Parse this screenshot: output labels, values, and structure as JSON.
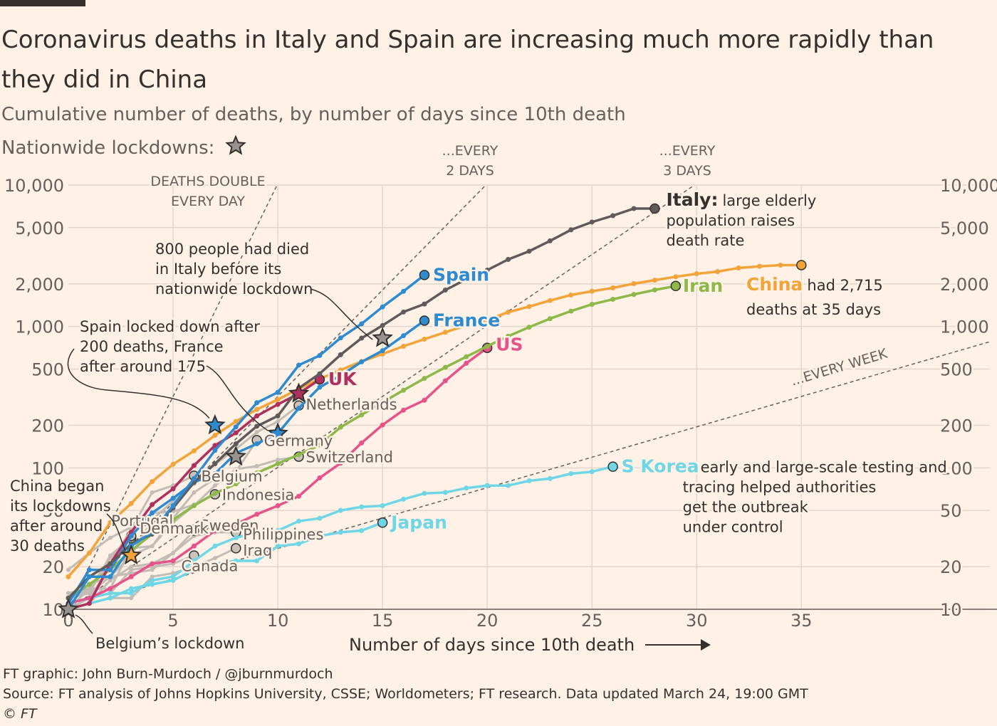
{
  "header": {
    "title": "Coronavirus deaths in Italy and Spain are increasing much more rapidly than they did in China",
    "subtitle": "Cumulative number of deaths, by number of days since 10th death",
    "lockdown_label": "Nationwide lockdowns:"
  },
  "footer": {
    "credit": "FT graphic: John Burn-Murdoch / @jburnmurdoch",
    "source": "Source: FT analysis of Johns Hopkins University, CSSE; Worldometers; FT research. Data updated March 24, 19:00 GMT",
    "copyright": "© FT"
  },
  "chart_data": {
    "type": "line",
    "xlabel": "Number of days since 10th death",
    "ylabel": "",
    "xlim": [
      0,
      44
    ],
    "ylim": [
      10,
      10000
    ],
    "yscale": "log",
    "x_ticks": [
      0,
      5,
      10,
      15,
      20,
      25,
      30,
      35
    ],
    "y_ticks": [
      10,
      20,
      50,
      100,
      200,
      500,
      1000,
      2000,
      5000,
      10000
    ],
    "y_tick_labels": [
      "10",
      "20",
      "50",
      "100",
      "200",
      "500",
      "1,000",
      "2,000",
      "5,000",
      "10,000"
    ],
    "grid": true,
    "colors": {
      "background": "#fff1e5",
      "grid": "#e0d6cc",
      "axis": "#66605c",
      "spain": "#2e8bd0",
      "italy": "#5e5b5a",
      "china": "#f2a33a",
      "iran": "#8db84a",
      "france": "#2e8bd0",
      "us": "#e6538a",
      "uk": "#b0305d",
      "skorea": "#6fd6e6",
      "japan": "#6fd6e6",
      "others": "#c2bcb5",
      "star": "#999390"
    },
    "guides": [
      {
        "label_lines": [
          "DEATHS DOUBLE",
          "EVERY DAY"
        ],
        "doubling_days": 1
      },
      {
        "label_lines": [
          "...EVERY",
          "2 DAYS"
        ],
        "doubling_days": 2
      },
      {
        "label_lines": [
          "...EVERY",
          "3 DAYS"
        ],
        "doubling_days": 3
      },
      {
        "label_lines": [
          "...EVERY WEEK"
        ],
        "doubling_days": 7
      }
    ],
    "series": [
      {
        "name": "Spain",
        "color_key": "spain",
        "x": [
          0,
          1,
          2,
          3,
          4,
          5,
          6,
          7,
          8,
          9,
          10,
          11,
          12,
          13,
          14,
          15,
          16,
          17
        ],
        "y": [
          10,
          17,
          17,
          28,
          35,
          54,
          84,
          133,
          195,
          289,
          342,
          533,
          623,
          830,
          1043,
          1375,
          1772,
          2311
        ]
      },
      {
        "name": "Italy",
        "color_key": "italy",
        "x": [
          0,
          1,
          2,
          3,
          4,
          5,
          6,
          7,
          8,
          9,
          10,
          11,
          12,
          13,
          14,
          15,
          16,
          17,
          18,
          19,
          20,
          21,
          22,
          23,
          24,
          25,
          26,
          27,
          28
        ],
        "y": [
          12,
          17,
          21,
          29,
          34,
          52,
          79,
          107,
          148,
          197,
          233,
          366,
          463,
          631,
          827,
          1016,
          1266,
          1441,
          1809,
          2158,
          2503,
          2978,
          3405,
          4032,
          4825,
          5476,
          6077,
          6820,
          6820
        ]
      },
      {
        "name": "China",
        "color_key": "china",
        "x": [
          0,
          1,
          2,
          3,
          4,
          5,
          6,
          7,
          8,
          9,
          10,
          11,
          12,
          13,
          14,
          15,
          16,
          17,
          18,
          19,
          20,
          21,
          22,
          23,
          24,
          25,
          26,
          27,
          28,
          29,
          30,
          31,
          32,
          33,
          34,
          35
        ],
        "y": [
          17,
          25,
          41,
          56,
          80,
          106,
          132,
          170,
          213,
          259,
          304,
          362,
          426,
          492,
          565,
          638,
          724,
          813,
          910,
          1018,
          1115,
          1261,
          1383,
          1526,
          1669,
          1775,
          1873,
          2009,
          2126,
          2247,
          2360,
          2442,
          2593,
          2663,
          2715,
          2715
        ]
      },
      {
        "name": "Iran",
        "color_key": "iran",
        "x": [
          0,
          1,
          2,
          3,
          4,
          5,
          6,
          7,
          8,
          9,
          10,
          11,
          12,
          13,
          14,
          15,
          16,
          17,
          18,
          19,
          20,
          21,
          22,
          23,
          24,
          25,
          26,
          27,
          28,
          29
        ],
        "y": [
          12,
          15,
          19,
          26,
          34,
          43,
          54,
          66,
          77,
          92,
          107,
          124,
          145,
          194,
          237,
          291,
          354,
          429,
          514,
          611,
          724,
          853,
          988,
          1135,
          1284,
          1433,
          1556,
          1685,
          1812,
          1934
        ]
      },
      {
        "name": "France",
        "color_key": "france",
        "x": [
          0,
          1,
          2,
          3,
          4,
          5,
          6,
          7,
          8,
          9,
          10,
          11,
          12,
          13,
          14,
          15,
          16,
          17
        ],
        "y": [
          11,
          19,
          19,
          33,
          48,
          61,
          79,
          91,
          127,
          148,
          175,
          264,
          372,
          450,
          562,
          674,
          860,
          1100
        ]
      },
      {
        "name": "US",
        "color_key": "us",
        "x": [
          0,
          1,
          2,
          3,
          4,
          5,
          6,
          7,
          8,
          9,
          10,
          11,
          12,
          13,
          14,
          15,
          16,
          17,
          18,
          19,
          20
        ],
        "y": [
          11,
          12,
          14,
          17,
          21,
          22,
          28,
          36,
          40,
          47,
          54,
          63,
          85,
          108,
          150,
          201,
          256,
          301,
          413,
          549,
          706
        ]
      },
      {
        "name": "UK",
        "color_key": "uk",
        "x": [
          0,
          1,
          2,
          3,
          4,
          5,
          6,
          7,
          8,
          9,
          10,
          11,
          12
        ],
        "y": [
          10,
          11,
          21,
          35,
          55,
          71,
          104,
          144,
          177,
          233,
          281,
          335,
          422
        ]
      },
      {
        "name": "S Korea",
        "color_key": "skorea",
        "x": [
          0,
          1,
          2,
          3,
          4,
          5,
          6,
          7,
          8,
          9,
          10,
          11,
          12,
          13,
          14,
          15,
          16,
          17,
          18,
          19,
          20,
          21,
          22,
          23,
          24,
          25,
          26
        ],
        "y": [
          11,
          12,
          13,
          13,
          16,
          17,
          22,
          28,
          32,
          35,
          36,
          42,
          44,
          50,
          53,
          54,
          60,
          66,
          67,
          72,
          75,
          75,
          81,
          84,
          91,
          94,
          102
        ]
      },
      {
        "name": "Japan",
        "color_key": "japan",
        "x": [
          0,
          1,
          2,
          3,
          4,
          5,
          6,
          7,
          8,
          9,
          10,
          11,
          12,
          13,
          14,
          15
        ],
        "y": [
          10,
          11,
          12,
          14,
          15,
          16,
          19,
          21,
          22,
          22,
          28,
          29,
          33,
          35,
          36,
          41
        ]
      },
      {
        "name": "Netherlands",
        "color_key": "others",
        "x": [
          0,
          1,
          2,
          3,
          4,
          5,
          6,
          7,
          8,
          9,
          10,
          11
        ],
        "y": [
          10,
          12,
          20,
          24,
          43,
          58,
          77,
          106,
          136,
          179,
          213,
          276
        ]
      },
      {
        "name": "Germany",
        "color_key": "others",
        "x": [
          0,
          1,
          2,
          3,
          4,
          5,
          6,
          7,
          8,
          9
        ],
        "y": [
          12,
          13,
          17,
          24,
          28,
          44,
          67,
          84,
          94,
          157
        ]
      },
      {
        "name": "Switzerland",
        "color_key": "others",
        "x": [
          0,
          1,
          2,
          3,
          4,
          5,
          6,
          7,
          8,
          9,
          10,
          11
        ],
        "y": [
          13,
          14,
          14,
          27,
          28,
          41,
          54,
          75,
          98,
          103,
          114,
          120
        ]
      },
      {
        "name": "Belgium",
        "color_key": "others",
        "x": [
          0,
          1,
          2,
          3,
          4,
          5,
          6
        ],
        "y": [
          10,
          14,
          21,
          37,
          67,
          75,
          88
        ]
      },
      {
        "name": "Indonesia",
        "color_key": "others",
        "x": [
          0,
          1,
          2,
          3,
          4,
          5,
          6,
          7
        ],
        "y": [
          19,
          25,
          32,
          38,
          48,
          49,
          55,
          65
        ]
      },
      {
        "name": "Portugal",
        "color_key": "others",
        "x": [
          0,
          1,
          2,
          3
        ],
        "y": [
          12,
          14,
          23,
          33
        ]
      },
      {
        "name": "Sweden",
        "color_key": "others",
        "x": [
          0,
          1,
          2,
          3,
          4,
          5,
          6
        ],
        "y": [
          10,
          11,
          16,
          20,
          21,
          25,
          36
        ]
      },
      {
        "name": "Denmark",
        "color_key": "others",
        "x": [
          0,
          1,
          2,
          3
        ],
        "y": [
          13,
          13,
          24,
          32
        ]
      },
      {
        "name": "Philippines",
        "color_key": "others",
        "x": [
          0,
          1,
          2,
          3,
          4,
          5,
          6,
          7,
          8
        ],
        "y": [
          12,
          15,
          17,
          18,
          19,
          25,
          33,
          35,
          35
        ]
      },
      {
        "name": "Iraq",
        "color_key": "others",
        "x": [
          0,
          1,
          2,
          3,
          4,
          5,
          6,
          7,
          8
        ],
        "y": [
          10,
          11,
          12,
          12,
          17,
          18,
          20,
          23,
          27
        ]
      },
      {
        "name": "Canada",
        "color_key": "others",
        "x": [
          0,
          1,
          2,
          3,
          4,
          5,
          6
        ],
        "y": [
          10,
          12,
          13,
          19,
          20,
          21,
          24
        ]
      }
    ],
    "lockdowns": [
      {
        "country": "Italy",
        "x": 15,
        "y": 827,
        "color_key": "star"
      },
      {
        "country": "Spain",
        "x": 7,
        "y": 200,
        "color_key": "spain"
      },
      {
        "country": "France",
        "x": 10,
        "y": 175,
        "color_key": "france"
      },
      {
        "country": "UK",
        "x": 11,
        "y": 335,
        "color_key": "uk"
      },
      {
        "country": "China",
        "x": 3,
        "y": 24,
        "color_key": "china"
      },
      {
        "country": "Belgium",
        "x": 0,
        "y": 10,
        "color_key": "star"
      },
      {
        "country": "Germany",
        "x": 8,
        "y": 120,
        "color_key": "star"
      }
    ],
    "labels": [
      {
        "name": "Spain",
        "bold": true,
        "suffix_lines": []
      },
      {
        "name": "Italy",
        "bold": true,
        "suffix_lines": [
          "large elderly",
          "population raises",
          "death rate"
        ]
      },
      {
        "name": "China",
        "bold": true,
        "suffix_lines": [
          "had 2,715",
          "deaths at 35 days"
        ]
      },
      {
        "name": "Iran",
        "bold": true,
        "suffix_lines": []
      },
      {
        "name": "France",
        "bold": true,
        "suffix_lines": []
      },
      {
        "name": "US",
        "bold": true,
        "suffix_lines": []
      },
      {
        "name": "UK",
        "bold": true,
        "suffix_lines": []
      },
      {
        "name": "S Korea",
        "bold": true,
        "suffix_lines": [
          "early and large-scale testing and",
          "tracing helped authorities",
          "get the outbreak",
          "under control"
        ]
      },
      {
        "name": "Japan",
        "bold": true,
        "suffix_lines": []
      }
    ],
    "annotations": [
      {
        "id": "italy-lockdown",
        "lines": [
          "800 people had died",
          "in Italy before its",
          "nationwide lockdown"
        ]
      },
      {
        "id": "spain-france",
        "lines": [
          "Spain locked down after",
          "200 deaths, France",
          "after around 175"
        ]
      },
      {
        "id": "china-lockdown",
        "lines": [
          "China began",
          "its lockdowns",
          "after around",
          "30 deaths"
        ]
      },
      {
        "id": "belgium-lockdown",
        "lines": [
          "Belgium’s lockdown"
        ]
      }
    ]
  }
}
